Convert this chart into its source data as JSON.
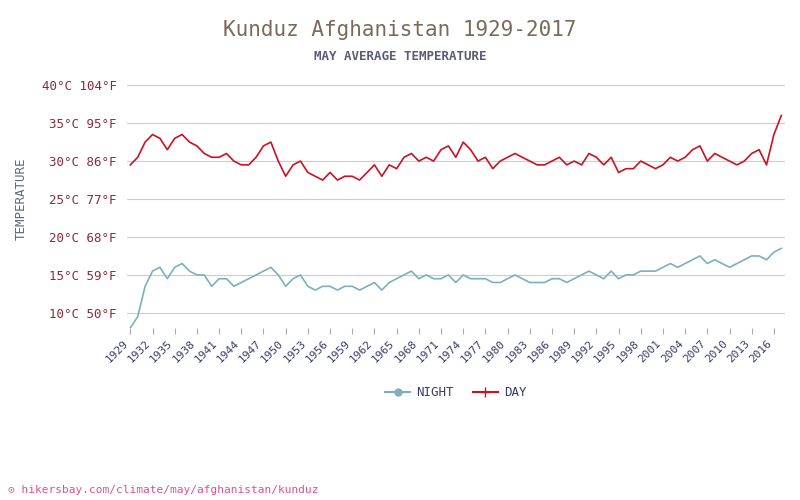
{
  "title": "Kunduz Afghanistan 1929-2017",
  "subtitle": "MAY AVERAGE TEMPERATURE",
  "ylabel": "TEMPERATURE",
  "background_color": "#ffffff",
  "plot_bg_color": "#ffffff",
  "title_color": "#7a6a5a",
  "subtitle_color": "#5a5a7a",
  "ylabel_color": "#5a6a7a",
  "tick_color": "#8a2a3a",
  "grid_color": "#cccccc",
  "day_color": "#cc1122",
  "night_color": "#7ab0c0",
  "watermark": "hikersbay.com/climate/may/afghanistan/kunduz",
  "years": [
    1929,
    1930,
    1931,
    1932,
    1933,
    1934,
    1935,
    1936,
    1937,
    1938,
    1939,
    1940,
    1941,
    1942,
    1943,
    1944,
    1945,
    1946,
    1947,
    1948,
    1949,
    1950,
    1951,
    1952,
    1953,
    1954,
    1955,
    1956,
    1957,
    1958,
    1959,
    1960,
    1961,
    1962,
    1963,
    1964,
    1965,
    1966,
    1967,
    1968,
    1969,
    1970,
    1971,
    1972,
    1973,
    1974,
    1975,
    1976,
    1977,
    1978,
    1979,
    1980,
    1981,
    1982,
    1983,
    1984,
    1985,
    1986,
    1987,
    1988,
    1989,
    1990,
    1991,
    1992,
    1993,
    1994,
    1995,
    1996,
    1997,
    1998,
    1999,
    2000,
    2001,
    2002,
    2003,
    2004,
    2005,
    2006,
    2007,
    2008,
    2009,
    2010,
    2011,
    2012,
    2013,
    2014,
    2015,
    2016,
    2017
  ],
  "day_temps": [
    29.5,
    30.5,
    32.5,
    33.5,
    33.0,
    31.5,
    33.0,
    33.5,
    32.5,
    32.0,
    31.0,
    30.5,
    30.5,
    31.0,
    30.0,
    29.5,
    29.5,
    30.5,
    32.0,
    32.5,
    30.0,
    28.0,
    29.5,
    30.0,
    28.5,
    28.0,
    27.5,
    28.5,
    27.5,
    28.0,
    28.0,
    27.5,
    28.5,
    29.5,
    28.0,
    29.5,
    29.0,
    30.5,
    31.0,
    30.0,
    30.5,
    30.0,
    31.5,
    32.0,
    30.5,
    32.5,
    31.5,
    30.0,
    30.5,
    29.0,
    30.0,
    30.5,
    31.0,
    30.5,
    30.0,
    29.5,
    29.5,
    30.0,
    30.5,
    29.5,
    30.0,
    29.5,
    31.0,
    30.5,
    29.5,
    30.5,
    28.5,
    29.0,
    29.0,
    30.0,
    29.5,
    29.0,
    29.5,
    30.5,
    30.0,
    30.5,
    31.5,
    32.0,
    30.0,
    31.0,
    30.5,
    30.0,
    29.5,
    30.0,
    31.0,
    31.5,
    29.5,
    33.5,
    36.0
  ],
  "night_temps": [
    8.0,
    9.5,
    13.5,
    15.5,
    16.0,
    14.5,
    16.0,
    16.5,
    15.5,
    15.0,
    15.0,
    13.5,
    14.5,
    14.5,
    13.5,
    14.0,
    14.5,
    15.0,
    15.5,
    16.0,
    15.0,
    13.5,
    14.5,
    15.0,
    13.5,
    13.0,
    13.5,
    13.5,
    13.0,
    13.5,
    13.5,
    13.0,
    13.5,
    14.0,
    13.0,
    14.0,
    14.5,
    15.0,
    15.5,
    14.5,
    15.0,
    14.5,
    14.5,
    15.0,
    14.0,
    15.0,
    14.5,
    14.5,
    14.5,
    14.0,
    14.0,
    14.5,
    15.0,
    14.5,
    14.0,
    14.0,
    14.0,
    14.5,
    14.5,
    14.0,
    14.5,
    15.0,
    15.5,
    15.0,
    14.5,
    15.5,
    14.5,
    15.0,
    15.0,
    15.5,
    15.5,
    15.5,
    16.0,
    16.5,
    16.0,
    16.5,
    17.0,
    17.5,
    16.5,
    17.0,
    16.5,
    16.0,
    16.5,
    17.0,
    17.5,
    17.5,
    17.0,
    18.0,
    18.5
  ],
  "yticks_c": [
    10,
    15,
    20,
    25,
    30,
    35,
    40
  ],
  "yticks_f": [
    50,
    59,
    68,
    77,
    86,
    95,
    104
  ],
  "xtick_years": [
    1929,
    1932,
    1935,
    1938,
    1941,
    1944,
    1947,
    1950,
    1953,
    1956,
    1959,
    1962,
    1965,
    1968,
    1971,
    1974,
    1977,
    1980,
    1983,
    1986,
    1989,
    1992,
    1995,
    1998,
    2001,
    2004,
    2007,
    2010,
    2013,
    2016
  ],
  "ylim": [
    8,
    42
  ]
}
